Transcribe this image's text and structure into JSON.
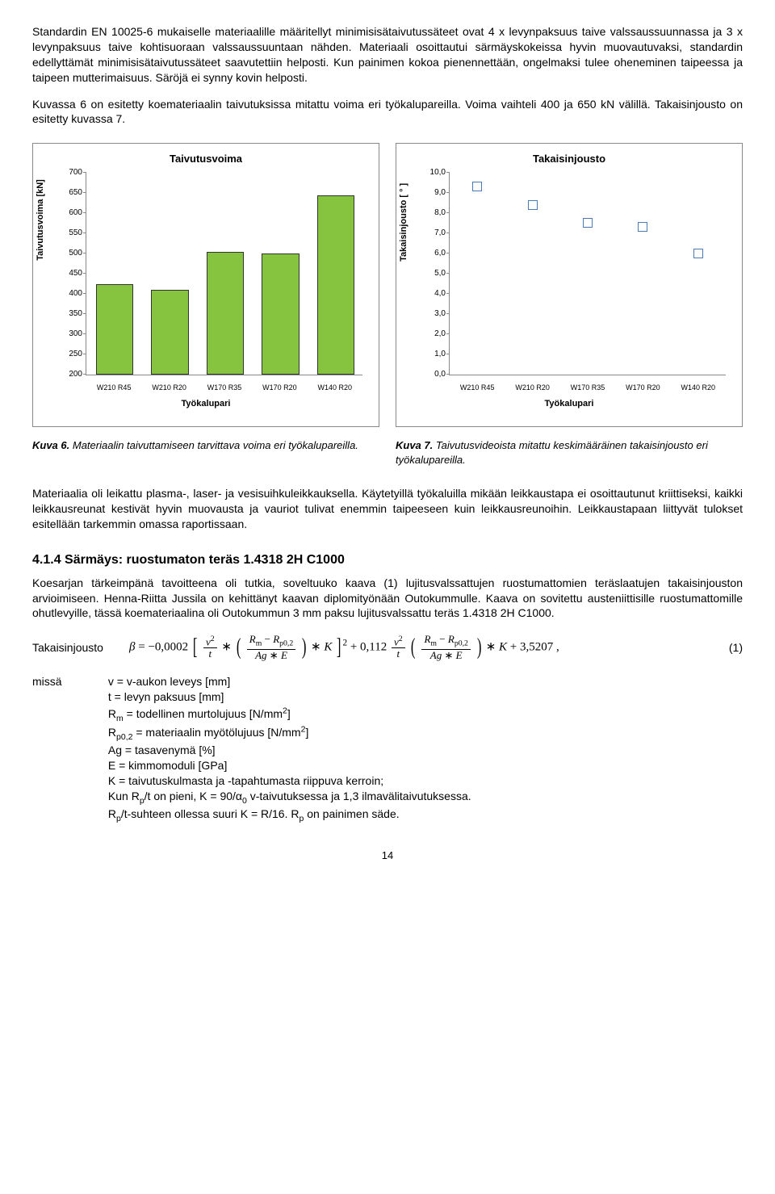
{
  "para1": "Standardin EN 10025-6 mukaiselle materiaalille määritellyt minimisisätaivutussäteet ovat 4 x levynpaksuus taive valssaussuunnassa ja 3 x levynpaksuus taive kohtisuoraan valssaussuuntaan nähden. Materiaali osoittautui särmäyskokeissa hyvin muovautuvaksi, standardin edellyttämät minimisisätaivutussäteet saavutettiin helposti. Kun painimen kokoa pienennettään, ongelmaksi tulee oheneminen taipeessa ja taipeen mutterimaisuus. Säröjä ei synny kovin helposti.",
  "para2": "Kuvassa 6 on esitetty koemateriaalin taivutuksissa mitattu voima eri työkalupareilla. Voima vaihteli 400 ja 650 kN välillä. Takaisinjousto on esitetty kuvassa 7.",
  "chart1": {
    "title": "Taivutusvoima",
    "ylabel": "Taivutusvoima [kN]",
    "xlabel": "Työkalupari",
    "yticks": [
      "200",
      "250",
      "300",
      "350",
      "400",
      "450",
      "500",
      "550",
      "600",
      "650",
      "700"
    ],
    "ymin": 200,
    "ymax": 700,
    "categories": [
      "W210 R45",
      "W210 R20",
      "W170 R35",
      "W170 R20",
      "W140 R20"
    ],
    "values": [
      420,
      405,
      500,
      495,
      640
    ],
    "bar_color": "#86c440"
  },
  "chart2": {
    "title": "Takaisinjousto",
    "ylabel": "Takaisinjousto [ ° ]",
    "xlabel": "Työkalupari",
    "yticks": [
      "0,0",
      "1,0",
      "2,0",
      "3,0",
      "4,0",
      "5,0",
      "6,0",
      "7,0",
      "8,0",
      "9,0",
      "10,0"
    ],
    "ymin": 0,
    "ymax": 10,
    "categories": [
      "W210 R45",
      "W210 R20",
      "W170 R35",
      "W170 R20",
      "W140 R20"
    ],
    "values": [
      9.3,
      8.4,
      7.5,
      7.3,
      6.0
    ],
    "marker_color": "#4a7bb5"
  },
  "caption1_b": "Kuva 6.",
  "caption1": " Materiaalin taivuttamiseen tarvittava voima eri työkalupareilla.",
  "caption2_b": "Kuva 7.",
  "caption2": " Taivutusvideoista mitattu keskimääräinen takaisinjousto eri työkalupareilla.",
  "para3": "Materiaalia oli leikattu plasma-, laser- ja vesisuihkuleikkauksella. Käytetyillä työkaluilla mikään leikkaustapa ei osoittautunut kriittiseksi, kaikki leikkausreunat kestivät hyvin muovausta ja vauriot tulivat enemmin taipeeseen kuin leikkausreunoihin. Leikkaustapaan liittyvät tulokset esitellään tarkemmin omassa raportissaan.",
  "section_h": "4.1.4  Särmäys: ruostumaton teräs 1.4318 2H C1000",
  "para4": "Koesarjan tärkeimpänä tavoitteena oli tutkia, soveltuuko kaava (1) lujitusvalssattujen ruostumattomien teräslaatujen takaisinjouston arvioimiseen. Henna-Riitta Jussila on kehittänyt kaavan diplomityönään Outokummulle. Kaava on sovitettu austeniittisille ruostumattomille ohutlevyille, tässä koemateriaalina oli Outokummun 3 mm paksu lujitusvalssattu teräs 1.4318 2H C1000.",
  "formula_label": "Takaisinjousto",
  "formula_num": "(1)",
  "defs_label": "missä",
  "defs": {
    "d1": "v = v-aukon leveys [mm]",
    "d2": "t = levyn paksuus [mm]",
    "d3_a": "R",
    "d3_sub": "m",
    "d3_b": " = todellinen murtolujuus [N/mm",
    "d3_sup": "2",
    "d3_c": "]",
    "d4_a": "R",
    "d4_sub": "p0,2",
    "d4_b": " = materiaalin myötölujuus [N/mm",
    "d4_sup": "2",
    "d4_c": "]",
    "d5": "Ag = tasavenymä [%]",
    "d6": "E = kimmomoduli [GPa]",
    "d7": "K = taivutuskulmasta ja -tapahtumasta riippuva kerroin;",
    "d8_a": "Kun R",
    "d8_sub1": "p",
    "d8_b": "/t on pieni, K = 90/α",
    "d8_sub2": "0",
    "d8_c": "  v-taivutuksessa ja 1,3 ilmavälitaivutuksessa.",
    "d9_a": "R",
    "d9_sub": "p",
    "d9_b": "/t-suhteen ollessa suuri K = R/16. R",
    "d9_sub2": "p",
    "d9_c": " on painimen säde."
  },
  "page_num": "14"
}
